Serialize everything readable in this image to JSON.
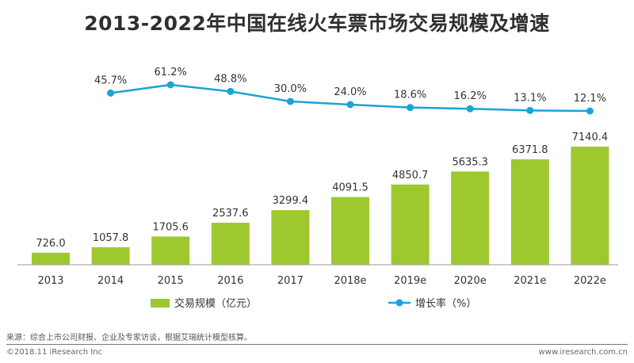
{
  "colors": {
    "bar": "#9dc92e",
    "line": "#1aa3d6",
    "axis": "#9a9a9a",
    "text": "#333333"
  },
  "chart_data": {
    "type": "bar",
    "title": "2013-2022年中国在线火车票市场交易规模及增速",
    "categories": [
      "2013",
      "2014",
      "2015",
      "2016",
      "2017",
      "2018e",
      "2019e",
      "2020e",
      "2021e",
      "2022e"
    ],
    "series": [
      {
        "name": "交易规模（亿元）",
        "type": "bar",
        "values": [
          726.0,
          1057.8,
          1705.6,
          2537.6,
          3299.4,
          4091.5,
          4850.7,
          5635.3,
          6371.8,
          7140.4
        ],
        "labels": [
          "726.0",
          "1057.8",
          "1705.6",
          "2537.6",
          "3299.4",
          "4091.5",
          "4850.7",
          "5635.3",
          "6371.8",
          "7140.4"
        ]
      },
      {
        "name": "增长率（%）",
        "type": "line",
        "x": [
          "2014",
          "2015",
          "2016",
          "2017",
          "2018e",
          "2019e",
          "2020e",
          "2021e",
          "2022e"
        ],
        "values": [
          45.7,
          61.2,
          48.8,
          30.0,
          24.0,
          18.6,
          16.2,
          13.1,
          12.1
        ],
        "labels": [
          "45.7%",
          "61.2%",
          "48.8%",
          "30.0%",
          "24.0%",
          "18.6%",
          "16.2%",
          "13.1%",
          "12.1%"
        ]
      }
    ],
    "legend_position": "bottom",
    "grid": false
  },
  "footer": {
    "source": "来源：综合上市公司财报、企业及专家访谈，根据艾瑞统计模型核算。",
    "copyright": "©2018.11 iResearch Inc",
    "website": "www.iresearch.com.cn"
  }
}
